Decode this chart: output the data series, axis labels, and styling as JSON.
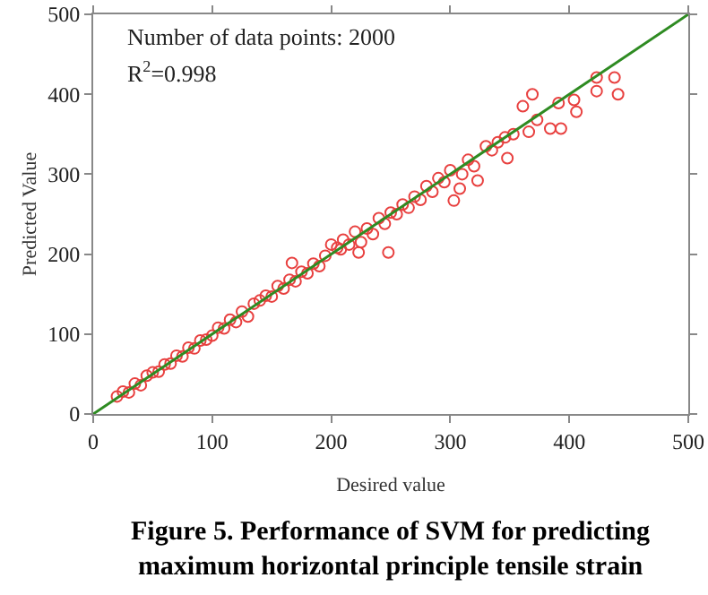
{
  "chart_data": {
    "type": "scatter",
    "title": "Figure 5. Performance of SVM for predicting maximum horizontal principle tensile strain",
    "xlabel": "Desired value",
    "ylabel": "Predicted Value",
    "annotations": [
      "Number of data points: 2000",
      "R$^{2}$=0.998"
    ],
    "xlim": [
      0,
      500
    ],
    "ylim": [
      0,
      500
    ],
    "xticks": [
      0,
      100,
      200,
      300,
      400,
      500
    ],
    "yticks": [
      0,
      100,
      200,
      300,
      400,
      500
    ],
    "grid": false,
    "series": [
      {
        "marker": "circle",
        "color": "#e8403f",
        "x": [
          20,
          25,
          30,
          35,
          40,
          45,
          50,
          55,
          60,
          65,
          70,
          75,
          80,
          85,
          90,
          95,
          100,
          105,
          110,
          115,
          120,
          125,
          130,
          135,
          140,
          145,
          150,
          155,
          160,
          165,
          167,
          170,
          175,
          180,
          185,
          190,
          195,
          200,
          205,
          208,
          210,
          215,
          220,
          223,
          225,
          230,
          235,
          240,
          245,
          248,
          250,
          255,
          260,
          265,
          270,
          275,
          280,
          285,
          290,
          295,
          300,
          303,
          308,
          310,
          315,
          320,
          323,
          330,
          335,
          340,
          346,
          348,
          353,
          361,
          366,
          369,
          373,
          384,
          391,
          393,
          404,
          406,
          423,
          423,
          438,
          441
        ],
        "values": [
          22,
          28,
          27,
          38,
          36,
          48,
          52,
          53,
          62,
          63,
          73,
          72,
          83,
          82,
          92,
          93,
          98,
          108,
          107,
          118,
          115,
          128,
          122,
          138,
          142,
          148,
          147,
          160,
          157,
          168,
          189,
          166,
          178,
          176,
          188,
          185,
          198,
          212,
          208,
          206,
          218,
          212,
          228,
          202,
          215,
          232,
          225,
          245,
          238,
          202,
          252,
          250,
          262,
          258,
          272,
          268,
          285,
          278,
          295,
          290,
          305,
          267,
          282,
          300,
          318,
          310,
          292,
          335,
          330,
          340,
          346,
          320,
          350,
          385,
          353,
          400,
          368,
          357,
          389,
          357,
          393,
          378,
          404,
          421,
          421,
          400
        ]
      },
      {
        "type": "line",
        "color": "#2e8b22",
        "x": [
          0,
          500
        ],
        "values": [
          0,
          500
        ]
      }
    ]
  }
}
